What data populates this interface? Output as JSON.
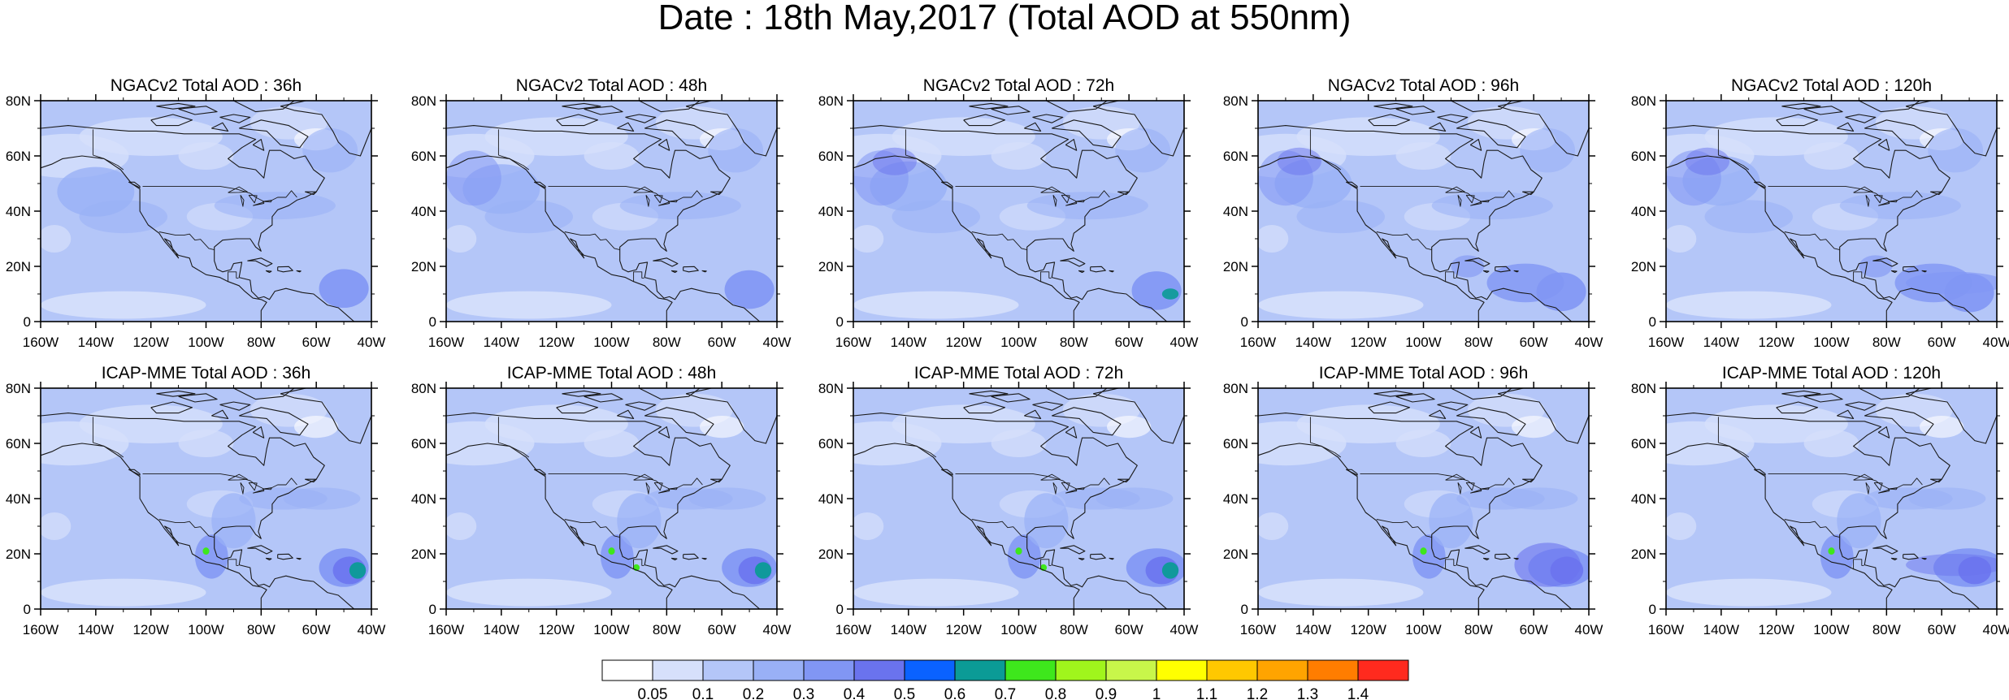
{
  "figure": {
    "title": "Date : 18th May,2017 (Total AOD at 550nm)"
  },
  "axes": {
    "lon_labels": [
      "160W",
      "140W",
      "120W",
      "100W",
      "80W",
      "60W",
      "40W"
    ],
    "lat_labels": [
      "0",
      "20N",
      "40N",
      "60N",
      "80N"
    ],
    "lon_range": [
      -160,
      -40
    ],
    "lat_range": [
      0,
      80
    ]
  },
  "panels": [
    {
      "title": "NGACv2 Total AOD : 36h",
      "model": "NGACv2",
      "lead": "36h"
    },
    {
      "title": "NGACv2 Total AOD : 48h",
      "model": "NGACv2",
      "lead": "48h"
    },
    {
      "title": "NGACv2 Total AOD : 72h",
      "model": "NGACv2",
      "lead": "72h"
    },
    {
      "title": "NGACv2 Total AOD : 96h",
      "model": "NGACv2",
      "lead": "96h"
    },
    {
      "title": "NGACv2 Total AOD : 120h",
      "model": "NGACv2",
      "lead": "120h"
    },
    {
      "title": "ICAP-MME Total AOD : 36h",
      "model": "ICAP-MME",
      "lead": "36h"
    },
    {
      "title": "ICAP-MME Total AOD : 48h",
      "model": "ICAP-MME",
      "lead": "48h"
    },
    {
      "title": "ICAP-MME Total AOD : 72h",
      "model": "ICAP-MME",
      "lead": "72h"
    },
    {
      "title": "ICAP-MME Total AOD : 96h",
      "model": "ICAP-MME",
      "lead": "96h"
    },
    {
      "title": "ICAP-MME Total AOD : 120h",
      "model": "ICAP-MME",
      "lead": "120h"
    }
  ],
  "colorbar": {
    "labels": [
      "0.05",
      "0.1",
      "0.2",
      "0.3",
      "0.4",
      "0.5",
      "0.6",
      "0.7",
      "0.8",
      "0.9",
      "1",
      "1.1",
      "1.2",
      "1.3",
      "1.4"
    ],
    "colors": [
      "#ffffff",
      "#d6e0fb",
      "#b4c6f8",
      "#99b0f6",
      "#8196f4",
      "#6a73ee",
      "#0a62ff",
      "#0b9b96",
      "#3ee71c",
      "#a0f51c",
      "#c8f64a",
      "#ffff00",
      "#ffc800",
      "#ffa400",
      "#ff7d00",
      "#ff2a1e"
    ]
  }
}
